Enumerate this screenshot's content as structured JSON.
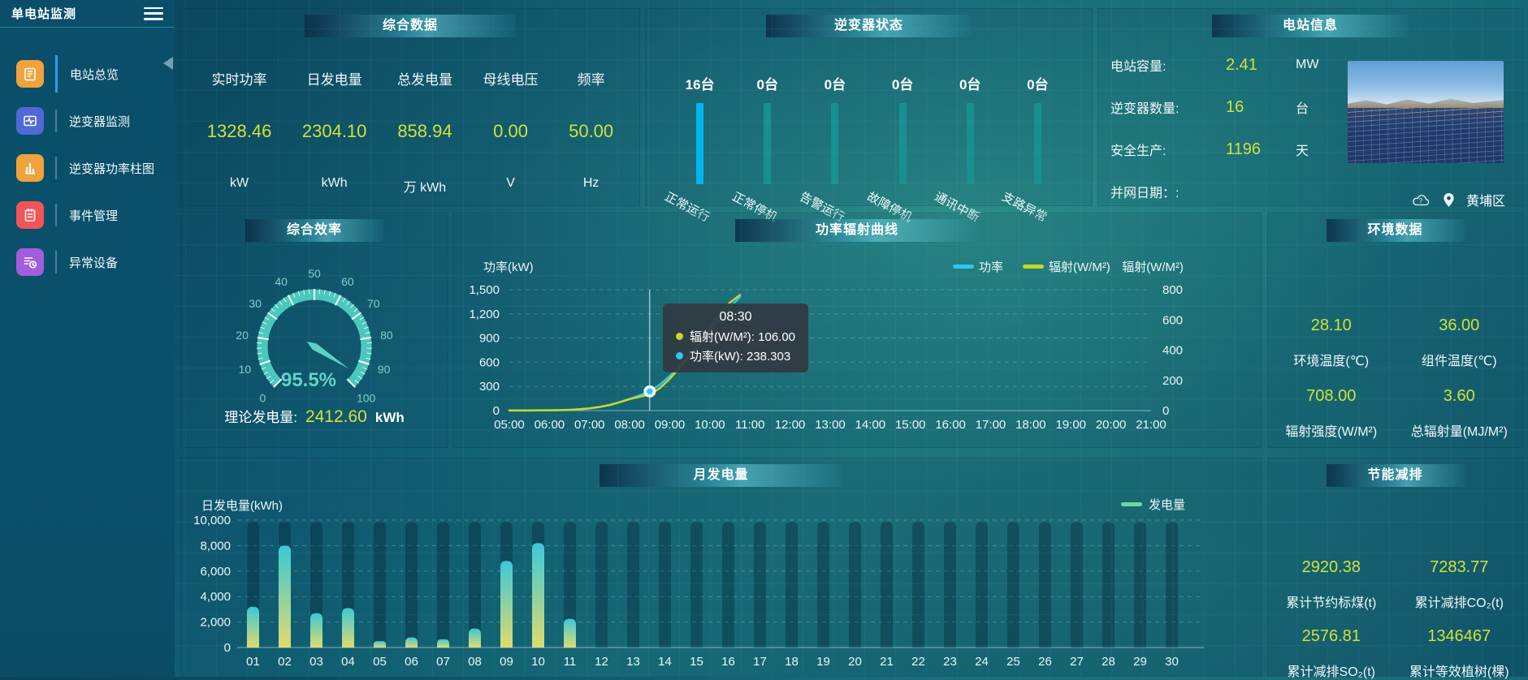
{
  "sidebar": {
    "title": "单电站监测",
    "hamburger_icon": "hamburger-icon",
    "collapse_icon": "collapse-left-arrow-icon",
    "items": [
      {
        "label": "电站总览",
        "icon": "station-overview-icon",
        "icon_color": "#f0a23c",
        "active": true
      },
      {
        "label": "逆变器监测",
        "icon": "inverter-monitor-icon",
        "icon_color": "#5069d6",
        "active": false
      },
      {
        "label": "逆变器功率柱图",
        "icon": "inverter-power-bars-icon",
        "icon_color": "#f0a23c",
        "active": false
      },
      {
        "label": "事件管理",
        "icon": "event-management-icon",
        "icon_color": "#f25555",
        "active": false
      },
      {
        "label": "异常设备",
        "icon": "abnormal-device-icon",
        "icon_color": "#a25ddc",
        "active": false
      }
    ]
  },
  "overview": {
    "title": "综合数据",
    "stats": [
      {
        "label": "实时功率",
        "value": "1328.46",
        "unit": "kW"
      },
      {
        "label": "日发电量",
        "value": "2304.10",
        "unit": "kWh"
      },
      {
        "label": "总发电量",
        "value": "858.94",
        "unit": "万 kWh"
      },
      {
        "label": "母线电压",
        "value": "0.00",
        "unit": "V"
      },
      {
        "label": "频率",
        "value": "50.00",
        "unit": "Hz"
      }
    ]
  },
  "station_info": {
    "title": "电站信息",
    "rows": [
      {
        "label": "电站容量:",
        "value": "2.41",
        "unit": "MW"
      },
      {
        "label": "逆变器数量:",
        "value": "16",
        "unit": "台"
      },
      {
        "label": "安全生产:",
        "value": "1196",
        "unit": "天"
      },
      {
        "label": "并网日期：:",
        "value": "",
        "unit": ""
      }
    ],
    "weather_icon": "cloud-question-icon",
    "pin_icon": "location-pin-icon",
    "location": "黄埔区"
  },
  "environment": {
    "title": "环境数据",
    "cells": [
      {
        "value": "28.10",
        "label": "环境温度(℃)"
      },
      {
        "value": "36.00",
        "label": "组件温度(℃)"
      },
      {
        "value": "708.00",
        "label": "辐射强度(W/M²)"
      },
      {
        "value": "3.60",
        "label": "总辐射量(MJ/M²)"
      }
    ]
  },
  "savings": {
    "title": "节能减排",
    "cells": [
      {
        "value": "2920.38",
        "label": "累计节约标煤(t)"
      },
      {
        "value": "7283.77",
        "label": "累计减排CO₂(t)"
      },
      {
        "value": "2576.81",
        "label": "累计减排SO₂(t)"
      },
      {
        "value": "1346467",
        "label": "累计等效植树(棵)"
      }
    ]
  },
  "chart_data": [
    {
      "id": "efficiency_gauge",
      "type": "gauge",
      "title": "综合效率",
      "min": 0,
      "max": 100,
      "major_tick_step": 10,
      "tick_labels": [
        "0",
        "10",
        "20",
        "30",
        "40",
        "50",
        "60",
        "70",
        "80",
        "90",
        "100"
      ],
      "value": 95.5,
      "value_label": "95.5%",
      "arc_color": "#4bc8bd",
      "footer": {
        "label": "理论发电量:",
        "value": "2412.60",
        "unit": "kWh"
      }
    },
    {
      "id": "power_radiation_curve",
      "type": "line",
      "title": "功率辐射曲线",
      "x_axis_labels": [
        "05:00",
        "06:00",
        "07:00",
        "08:00",
        "09:00",
        "10:00",
        "11:00",
        "12:00",
        "13:00",
        "14:00",
        "15:00",
        "16:00",
        "17:00",
        "18:00",
        "19:00",
        "20:00",
        "21:00"
      ],
      "x_range": [
        5,
        21
      ],
      "left_axis": {
        "name": "功率(kW)",
        "ticks": [
          0,
          300,
          600,
          900,
          1200,
          1500
        ],
        "tick_labels": [
          "0",
          "300",
          "600",
          "900",
          "1,200",
          "1,500"
        ],
        "max": 1500
      },
      "right_axis": {
        "name": "辐射(W/M²)",
        "ticks": [
          0,
          200,
          400,
          600,
          800
        ],
        "tick_labels": [
          "0",
          "200",
          "400",
          "600",
          "800"
        ],
        "max": 800
      },
      "legend": [
        {
          "label": "功率",
          "color": "#2ec6f2"
        },
        {
          "label": "辐射(W/M²)",
          "color": "#c9d62c"
        }
      ],
      "x": [
        5,
        5.25,
        5.5,
        5.75,
        6,
        6.25,
        6.5,
        6.75,
        7,
        7.25,
        7.5,
        7.75,
        8,
        8.25,
        8.5,
        8.75,
        9,
        9.25,
        9.5,
        9.75,
        10,
        10.25,
        10.5,
        10.75
      ],
      "series": [
        {
          "name": "功率",
          "axis": "left",
          "color": "#2ec6f2",
          "values": [
            2,
            2,
            3,
            3,
            4,
            6,
            10,
            16,
            28,
            45,
            70,
            105,
            145,
            190,
            238.303,
            320,
            430,
            555,
            685,
            825,
            975,
            1130,
            1280,
            1410
          ]
        },
        {
          "name": "辐射",
          "axis": "right",
          "color": "#c9d62c",
          "values": [
            1,
            1,
            1,
            2,
            2,
            3,
            5,
            9,
            15,
            24,
            37,
            55,
            76,
            92,
            106,
            148,
            210,
            285,
            365,
            450,
            545,
            640,
            715,
            765
          ]
        }
      ],
      "tooltip": {
        "time": "08:30",
        "axis_x": 8.5,
        "marker_value": 238.303,
        "rows": [
          {
            "color": "#c9d62c",
            "text": "辐射(W/M²): 106.00"
          },
          {
            "color": "#2ec6f2",
            "text": "功率(kW): 238.303"
          }
        ]
      }
    },
    {
      "id": "monthly_generation",
      "type": "bar",
      "title": "月发电量",
      "axis_name": "日发电量(kWh)",
      "y_ticks": [
        0,
        2000,
        4000,
        6000,
        8000,
        10000
      ],
      "y_tick_labels": [
        "0",
        "2,000",
        "4,000",
        "6,000",
        "8,000",
        "10,000"
      ],
      "ymax": 10000,
      "legend": [
        {
          "label": "发电量",
          "color": "#6fd9a0"
        }
      ],
      "bar_gradient": [
        "#3bc8d8",
        "#e0db6d"
      ],
      "categories": [
        "01",
        "02",
        "03",
        "04",
        "05",
        "06",
        "07",
        "08",
        "09",
        "10",
        "11",
        "12",
        "13",
        "14",
        "15",
        "16",
        "17",
        "18",
        "19",
        "20",
        "21",
        "22",
        "23",
        "24",
        "25",
        "26",
        "27",
        "28",
        "29",
        "30"
      ],
      "values": [
        3200,
        8000,
        2700,
        3100,
        500,
        800,
        650,
        1500,
        6800,
        8200,
        2250,
        0,
        0,
        0,
        0,
        0,
        0,
        0,
        0,
        0,
        0,
        0,
        0,
        0,
        0,
        0,
        0,
        0,
        0,
        0
      ]
    },
    {
      "id": "inverter_status",
      "type": "status-bars",
      "title": "逆变器状态",
      "items": [
        {
          "count": 16,
          "count_label": "16台",
          "label": "正常运行",
          "color": "#00b6f0"
        },
        {
          "count": 0,
          "count_label": "0台",
          "label": "正常停机",
          "color": "#16918f"
        },
        {
          "count": 0,
          "count_label": "0台",
          "label": "告警运行",
          "color": "#16918f"
        },
        {
          "count": 0,
          "count_label": "0台",
          "label": "故障停机",
          "color": "#16918f"
        },
        {
          "count": 0,
          "count_label": "0台",
          "label": "通讯中断",
          "color": "#16918f"
        },
        {
          "count": 0,
          "count_label": "0台",
          "label": "支路异常",
          "color": "#16918f"
        }
      ]
    }
  ]
}
